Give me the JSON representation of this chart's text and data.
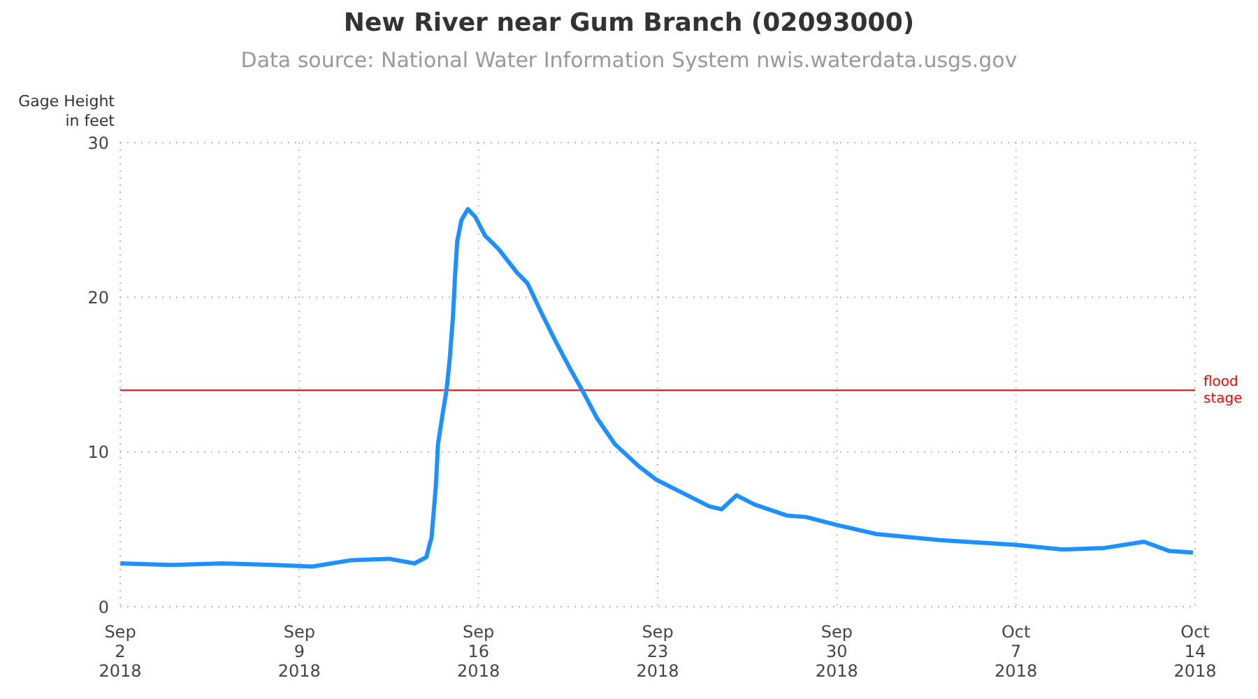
{
  "chart_data": {
    "type": "line",
    "title": "New River near Gum Branch (02093000)",
    "subtitle": "Data source: National Water Information System nwis.waterdata.usgs.gov",
    "ylabel": "Gage Height\nin feet",
    "x": [
      "2018-09-02T00:00",
      "2018-09-04T00:00",
      "2018-09-06T00:00",
      "2018-09-08T00:00",
      "2018-09-09T12:00",
      "2018-09-11T00:00",
      "2018-09-12T12:00",
      "2018-09-13T12:00",
      "2018-09-13T23:00",
      "2018-09-14T04:00",
      "2018-09-14T08:00",
      "2018-09-14T10:00",
      "2018-09-14T14:00",
      "2018-09-14T18:00",
      "2018-09-14T21:00",
      "2018-09-15T00:00",
      "2018-09-15T02:00",
      "2018-09-15T04:00",
      "2018-09-15T08:00",
      "2018-09-15T14:00",
      "2018-09-15T21:00",
      "2018-09-16T06:00",
      "2018-09-16T19:00",
      "2018-09-17T12:00",
      "2018-09-17T22:00",
      "2018-09-18T11:00",
      "2018-09-19T00:00",
      "2018-09-19T13:00",
      "2018-09-20T02:00",
      "2018-09-20T15:00",
      "2018-09-21T08:00",
      "2018-09-22T06:00",
      "2018-09-22T23:00",
      "2018-09-24T01:00",
      "2018-09-25T00:00",
      "2018-09-25T12:00",
      "2018-09-26T02:00",
      "2018-09-26T19:00",
      "2018-09-28T01:00",
      "2018-09-28T19:00",
      "2018-09-29T23:00",
      "2018-10-01T13:00",
      "2018-10-04T01:00",
      "2018-10-07T00:00",
      "2018-10-08T19:00",
      "2018-10-10T11:00",
      "2018-10-12T00:00",
      "2018-10-13T00:00",
      "2018-10-13T22:00"
    ],
    "series": [
      {
        "color": "#1e90ff",
        "values": [
          2.8,
          2.7,
          2.8,
          2.7,
          2.6,
          3.0,
          3.1,
          2.8,
          3.2,
          4.5,
          7.8,
          10.5,
          12.3,
          14.0,
          16.0,
          18.7,
          21.4,
          23.6,
          25.0,
          25.7,
          25.2,
          24.0,
          23.1,
          21.6,
          20.9,
          19.0,
          17.2,
          15.5,
          13.9,
          12.2,
          10.5,
          9.1,
          8.2,
          7.3,
          6.5,
          6.3,
          7.2,
          6.6,
          5.9,
          5.8,
          5.3,
          4.7,
          4.3,
          4.0,
          3.7,
          3.8,
          4.2,
          3.6,
          3.5
        ]
      }
    ],
    "xlim": [
      "2018-09-02",
      "2018-10-14"
    ],
    "xticks": [
      {
        "value": "2018-09-02",
        "label": "Sep\n2\n2018"
      },
      {
        "value": "2018-09-09",
        "label": "Sep\n9\n2018"
      },
      {
        "value": "2018-09-16",
        "label": "Sep\n16\n2018"
      },
      {
        "value": "2018-09-23",
        "label": "Sep\n23\n2018"
      },
      {
        "value": "2018-09-30",
        "label": "Sep\n30\n2018"
      },
      {
        "value": "2018-10-07",
        "label": "Oct\n7\n2018"
      },
      {
        "value": "2018-10-14",
        "label": "Oct\n14\n2018"
      }
    ],
    "ylim": [
      0,
      30
    ],
    "yticks": [
      0,
      10,
      20,
      30
    ],
    "ref_lines": [
      {
        "axis": "y",
        "value": 14,
        "label": "flood\nstage",
        "color": "#ff0000"
      }
    ],
    "grid": true,
    "marker": "none",
    "line_style": "solid"
  }
}
